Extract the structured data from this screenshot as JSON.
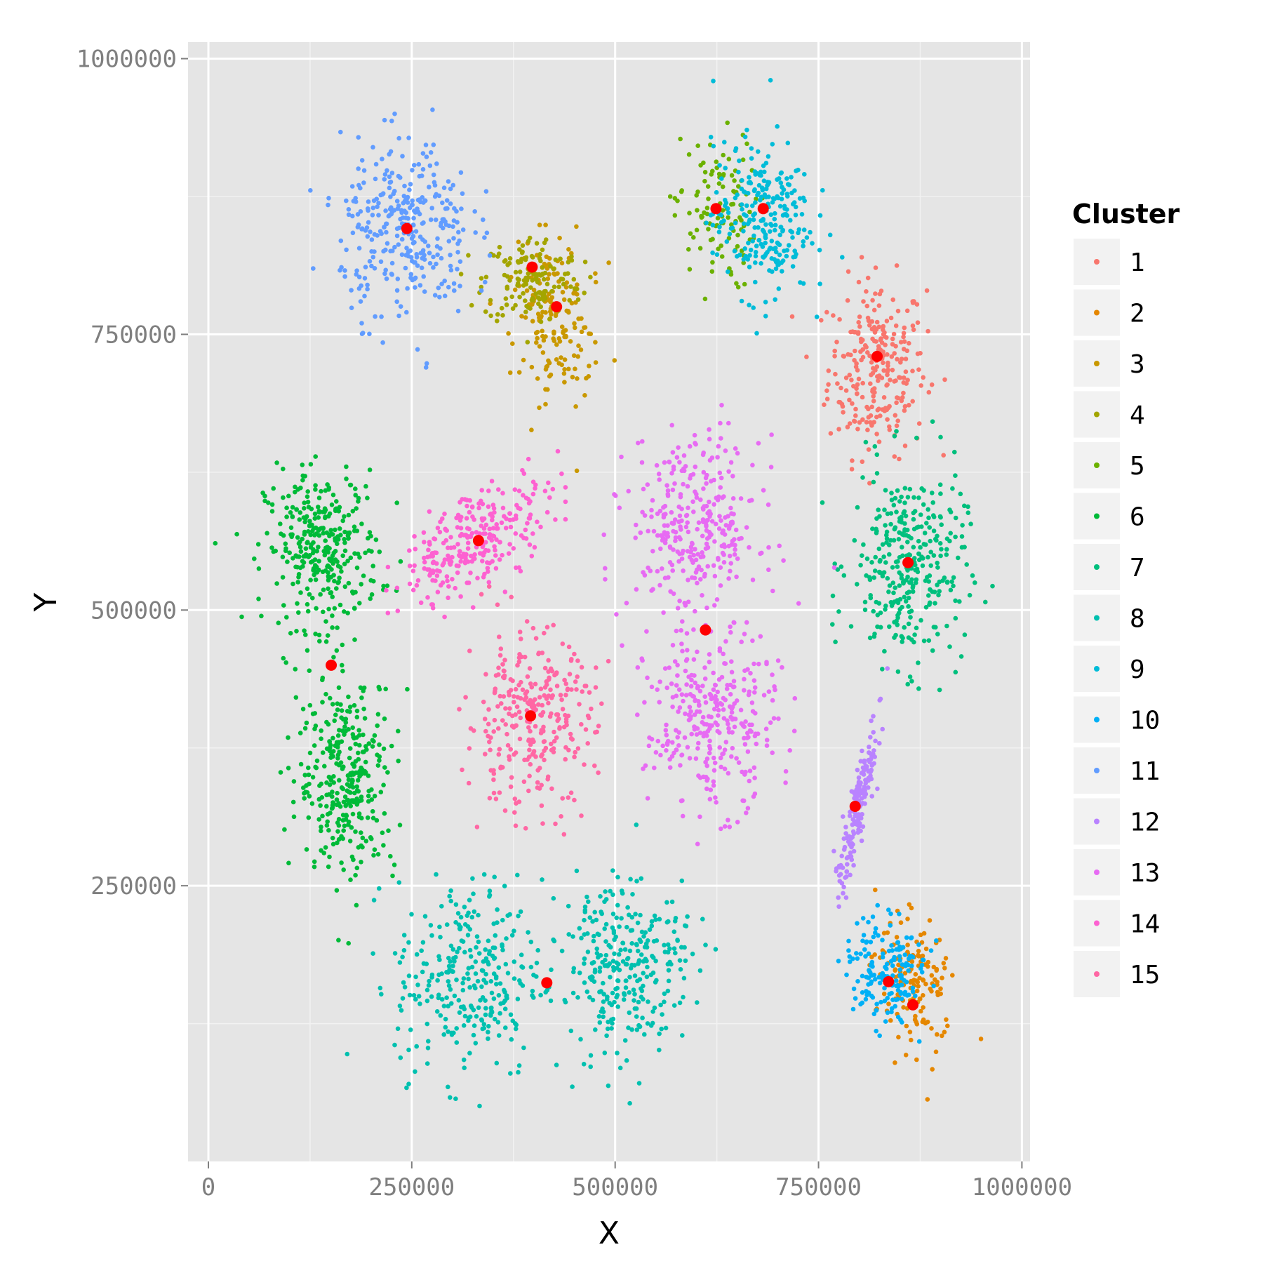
{
  "chart_data": {
    "type": "scatter",
    "title": "",
    "xlabel": "X",
    "ylabel": "Y",
    "xlim": [
      -25000,
      1010000
    ],
    "ylim": [
      0,
      1015000
    ],
    "x_ticks": [
      0,
      250000,
      500000,
      750000,
      1000000
    ],
    "x_tick_labels": [
      "0",
      "250000",
      "500000",
      "750000",
      "1000000"
    ],
    "y_ticks": [
      250000,
      500000,
      750000,
      1000000
    ],
    "y_tick_labels": [
      "250000",
      "500000",
      "750000",
      "1000000"
    ],
    "grid": true,
    "legend_title": "Cluster",
    "legend_position": "right",
    "point_count_note": "",
    "series": [
      {
        "name": "1",
        "color": "#F8766D",
        "center": [
          822000,
          720000
        ],
        "spread": [
          30000,
          40000
        ],
        "n": 260,
        "rot": 0.0
      },
      {
        "name": "2",
        "color": "#E58700",
        "center": [
          868000,
          160000
        ],
        "spread": [
          25000,
          30000
        ],
        "n": 150,
        "rot": 0.4
      },
      {
        "name": "3",
        "color": "#C99800",
        "center": [
          425000,
          765000
        ],
        "spread": [
          25000,
          35000
        ],
        "n": 170,
        "rot": 0.3
      },
      {
        "name": "4",
        "color": "#A3A500",
        "center": [
          398000,
          800000
        ],
        "spread": [
          30000,
          20000
        ],
        "n": 150,
        "rot": 0.0
      },
      {
        "name": "5",
        "color": "#6BB100",
        "center": [
          622000,
          860000
        ],
        "spread": [
          25000,
          35000
        ],
        "n": 110,
        "rot": 0.0
      },
      {
        "name": "6",
        "color": "#00BA38",
        "center": [
          140000,
          555000
        ],
        "spread": [
          35000,
          35000
        ],
        "n": 330,
        "rot": 0.0
      },
      {
        "name": "7",
        "color": "#00BF7D",
        "center": [
          860000,
          540000
        ],
        "spread": [
          35000,
          45000
        ],
        "n": 330,
        "rot": 0.0
      },
      {
        "name": "8",
        "color": "#00C0AF",
        "center": [
          320000,
          165000
        ],
        "spread": [
          45000,
          45000
        ],
        "n": 300,
        "rot": 0.0
      },
      {
        "name": "8",
        "color": "#00C0AF",
        "center": [
          510000,
          180000
        ],
        "spread": [
          40000,
          40000
        ],
        "n": 300,
        "rot": 0.4
      },
      {
        "name": "9",
        "color": "#00BCD8",
        "center": [
          680000,
          855000
        ],
        "spread": [
          30000,
          35000
        ],
        "n": 260,
        "rot": 0.0
      },
      {
        "name": "10",
        "color": "#00B0F6",
        "center": [
          835000,
          175000
        ],
        "spread": [
          25000,
          25000
        ],
        "n": 170,
        "rot": 0.5
      },
      {
        "name": "11",
        "color": "#619CFF",
        "center": [
          243000,
          845000
        ],
        "spread": [
          40000,
          40000
        ],
        "n": 330,
        "rot": 0.0
      },
      {
        "name": "12",
        "color": "#B983FF",
        "center": [
          798000,
          320000
        ],
        "spread": [
          6000,
          40000
        ],
        "n": 170,
        "rot": -0.3
      },
      {
        "name": "13",
        "color": "#E76BF3",
        "center": [
          598000,
          575000
        ],
        "spread": [
          40000,
          40000
        ],
        "n": 320,
        "rot": 0.0
      },
      {
        "name": "13",
        "color": "#E76BF3",
        "center": [
          618000,
          400000
        ],
        "spread": [
          40000,
          40000
        ],
        "n": 320,
        "rot": 0.0
      },
      {
        "name": "14",
        "color": "#FD61D1",
        "center": [
          330000,
          565000
        ],
        "spread": [
          50000,
          20000
        ],
        "n": 280,
        "rot": 0.45
      },
      {
        "name": "15",
        "color": "#FF67A4",
        "center": [
          395000,
          400000
        ],
        "spread": [
          40000,
          40000
        ],
        "n": 300,
        "rot": 0.0
      },
      {
        "name": "6",
        "color": "#00BA38",
        "center": [
          170000,
          350000
        ],
        "spread": [
          30000,
          45000
        ],
        "n": 330,
        "rot": 0.0
      }
    ],
    "legend": [
      {
        "label": "1",
        "color": "#F8766D"
      },
      {
        "label": "2",
        "color": "#E58700"
      },
      {
        "label": "3",
        "color": "#C99800"
      },
      {
        "label": "4",
        "color": "#A3A500"
      },
      {
        "label": "5",
        "color": "#6BB100"
      },
      {
        "label": "6",
        "color": "#00BA38"
      },
      {
        "label": "7",
        "color": "#00BF7D"
      },
      {
        "label": "8",
        "color": "#00C0AF"
      },
      {
        "label": "9",
        "color": "#00BCD8"
      },
      {
        "label": "10",
        "color": "#00B0F6"
      },
      {
        "label": "11",
        "color": "#619CFF"
      },
      {
        "label": "12",
        "color": "#B983FF"
      },
      {
        "label": "13",
        "color": "#E76BF3"
      },
      {
        "label": "14",
        "color": "#FD61D1"
      },
      {
        "label": "15",
        "color": "#FF67A4"
      }
    ],
    "centroids": {
      "color": "#FF0000",
      "points": [
        [
          244000,
          846000
        ],
        [
          398000,
          811000
        ],
        [
          428000,
          775000
        ],
        [
          624000,
          864000
        ],
        [
          682000,
          864000
        ],
        [
          822000,
          730000
        ],
        [
          860000,
          543000
        ],
        [
          332000,
          563000
        ],
        [
          611000,
          482000
        ],
        [
          151000,
          450000
        ],
        [
          396000,
          404000
        ],
        [
          795000,
          322000
        ],
        [
          836000,
          163000
        ],
        [
          866000,
          142000
        ],
        [
          416000,
          162000
        ]
      ]
    }
  }
}
